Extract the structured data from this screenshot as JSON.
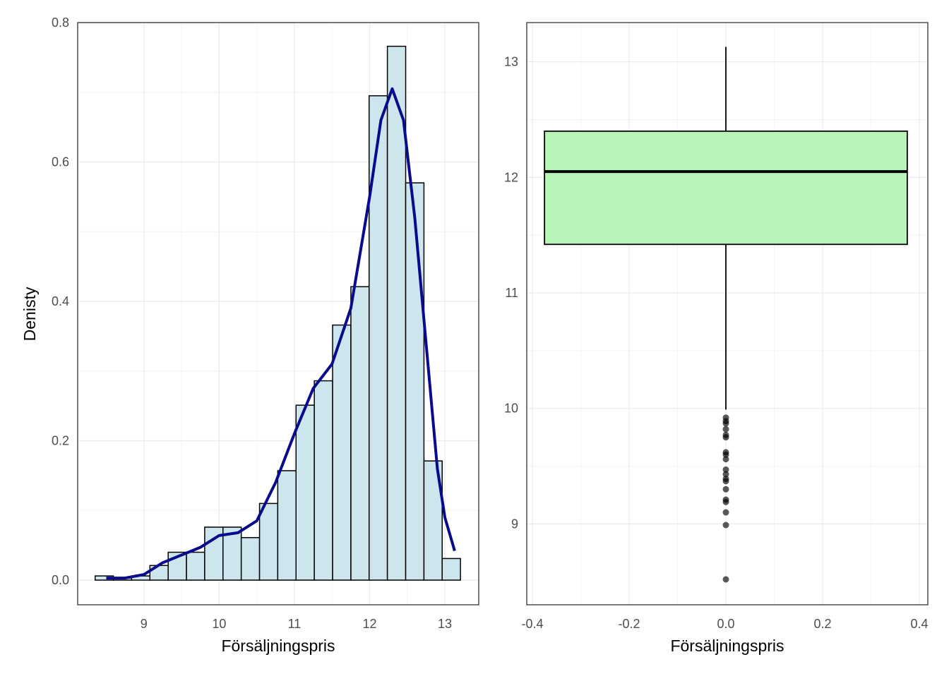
{
  "chart_data": [
    {
      "type": "histogram",
      "x_label": "Försäljningspris",
      "y_label": "Denisty",
      "bins": [
        8.352,
        8.595,
        8.837,
        9.08,
        9.323,
        9.566,
        9.808,
        10.051,
        10.294,
        10.537,
        10.779,
        11.022,
        11.265,
        11.508,
        11.751,
        11.993,
        12.236,
        12.479,
        12.722,
        12.964,
        13.207
      ],
      "values": [
        0.006,
        0.003,
        0.006,
        0.021,
        0.04,
        0.04,
        0.076,
        0.076,
        0.061,
        0.11,
        0.157,
        0.251,
        0.286,
        0.366,
        0.421,
        0.695,
        0.766,
        0.57,
        0.171,
        0.031
      ],
      "color": "#cde6ee",
      "edge_color": "#000000",
      "density": {
        "x": [
          8.5,
          8.75,
          9.0,
          9.25,
          9.5,
          9.75,
          10.0,
          10.25,
          10.5,
          10.75,
          11.0,
          11.25,
          11.5,
          11.75,
          12.0,
          12.15,
          12.3,
          12.45,
          12.6,
          12.75,
          12.9,
          13.0,
          13.13
        ],
        "values": [
          0.003,
          0.003,
          0.008,
          0.025,
          0.036,
          0.047,
          0.064,
          0.068,
          0.085,
          0.14,
          0.21,
          0.275,
          0.31,
          0.39,
          0.55,
          0.66,
          0.705,
          0.66,
          0.52,
          0.34,
          0.16,
          0.09,
          0.042
        ],
        "color": "#0a0a8c"
      },
      "xlim": [
        8.12,
        13.45
      ],
      "xticks": [
        9,
        10,
        11,
        12,
        13
      ],
      "ylim": [
        -0.0354,
        0.8
      ],
      "yticks": [
        {
          "value": 0,
          "label": "0.0"
        },
        0.2,
        0.4,
        0.6,
        0.8
      ],
      "grid": true
    },
    {
      "type": "box",
      "x_label": "Försäljningspris",
      "whisker_low": 9.99,
      "q1": 11.42,
      "median": 12.05,
      "q3": 12.4,
      "whisker_high": 13.13,
      "outliers": [
        9.92,
        9.89,
        9.87,
        9.82,
        9.77,
        9.75,
        9.62,
        9.6,
        9.56,
        9.47,
        9.43,
        9.39,
        9.37,
        9.3,
        9.21,
        9.19,
        9.1,
        8.99,
        8.52
      ],
      "box_width": 0.75,
      "color": "#b9f5b9",
      "xlim": [
        -0.4117,
        0.4175
      ],
      "xticks": [
        -0.4,
        -0.2,
        {
          "value": 0,
          "label": "0.0"
        },
        0.2,
        0.4
      ],
      "ylim": [
        8.3,
        13.34
      ],
      "yticks": [
        9,
        10,
        11,
        12,
        13
      ],
      "grid": true
    }
  ]
}
